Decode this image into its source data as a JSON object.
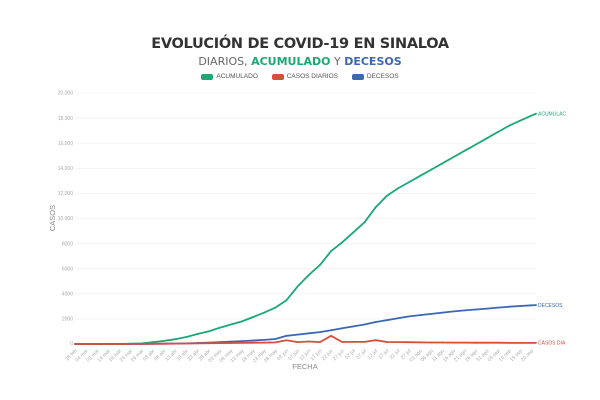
{
  "chart_data": {
    "type": "line",
    "title": "EVOLUCIÓN DE COVID-19 EN SINALOA",
    "subtitle": {
      "part1": "DIARIOS, ",
      "part2": "ACUMULADO",
      "part3": " Y ",
      "part4": "DECESOS"
    },
    "xlabel": "FECHA",
    "ylabel": "CASOS",
    "ylim": [
      0,
      20000
    ],
    "yticks": [
      "0",
      "2000",
      "4000",
      "6000",
      "8000",
      "10,000",
      "12,000",
      "14,000",
      "16,000",
      "18,000",
      "20,000"
    ],
    "ytick_values": [
      0,
      2000,
      4000,
      6000,
      8000,
      10000,
      12000,
      14000,
      16000,
      18000,
      20000
    ],
    "grid": true,
    "legend_position": "top",
    "xticks": [
      "28 feb",
      "04 mar",
      "09 mar",
      "14 mar",
      "19 mar",
      "24 mar",
      "29 mar",
      "03 abr",
      "08 abr",
      "13 abr",
      "18 abr",
      "23 abr",
      "28 abr",
      "03 may",
      "08 may",
      "13 may",
      "18 may",
      "23 may",
      "28 may",
      "02 jun",
      "07 jun",
      "12 jun",
      "17 jun",
      "22 jun",
      "27 jun",
      "02 jul",
      "07 jul",
      "12 jul",
      "17 jul",
      "22 jul",
      "27 jul",
      "01 ago",
      "06 ago",
      "11 ago",
      "16 ago",
      "21 ago",
      "26 ago",
      "31 ago",
      "05 sep",
      "10 sep",
      "15 sep",
      "20 sep"
    ],
    "x": [
      "28 feb",
      "04 mar",
      "09 mar",
      "14 mar",
      "19 mar",
      "24 mar",
      "29 mar",
      "03 abr",
      "08 abr",
      "13 abr",
      "18 abr",
      "23 abr",
      "28 abr",
      "03 may",
      "08 may",
      "13 may",
      "18 may",
      "23 may",
      "28 may",
      "02 jun",
      "07 jun",
      "12 jun",
      "17 jun",
      "22 jun",
      "27 jun",
      "02 jul",
      "07 jul",
      "12 jul",
      "17 jul",
      "22 jul",
      "27 jul",
      "01 ago",
      "06 ago",
      "11 ago",
      "16 ago",
      "21 ago",
      "26 ago",
      "31 ago",
      "05 sep",
      "10 sep",
      "15 sep",
      "20 sep",
      "22 sep"
    ],
    "series": [
      {
        "name": "ACUMULADO",
        "color": "#1aa874",
        "end_label": "ACUMULAC",
        "values": [
          0,
          0,
          2,
          5,
          10,
          20,
          50,
          150,
          250,
          380,
          560,
          800,
          1000,
          1300,
          1550,
          1800,
          2150,
          2500,
          2900,
          3500,
          4600,
          5500,
          6300,
          7400,
          8100,
          8900,
          9700,
          10900,
          11800,
          12400,
          12900,
          13400,
          13900,
          14400,
          14900,
          15400,
          15900,
          16400,
          16900,
          17400,
          17800,
          18200,
          18350
        ]
      },
      {
        "name": "CASOS DIARIOS",
        "color": "#d2503c",
        "end_label": "CASOS DIA",
        "values": [
          0,
          0,
          0,
          1,
          2,
          5,
          10,
          20,
          25,
          30,
          40,
          50,
          60,
          70,
          80,
          90,
          100,
          110,
          130,
          300,
          150,
          200,
          150,
          650,
          160,
          170,
          170,
          300,
          160,
          150,
          140,
          130,
          120,
          120,
          110,
          110,
          100,
          100,
          100,
          90,
          90,
          90,
          90
        ]
      },
      {
        "name": "DECESOS",
        "color": "#3a68b4",
        "end_label": "DECESOS",
        "values": [
          0,
          0,
          0,
          0,
          0,
          1,
          3,
          10,
          20,
          30,
          50,
          80,
          110,
          150,
          190,
          230,
          280,
          330,
          400,
          650,
          750,
          850,
          950,
          1100,
          1250,
          1400,
          1550,
          1750,
          1900,
          2050,
          2200,
          2300,
          2400,
          2500,
          2600,
          2680,
          2750,
          2820,
          2900,
          2970,
          3030,
          3080,
          3100
        ]
      }
    ]
  }
}
